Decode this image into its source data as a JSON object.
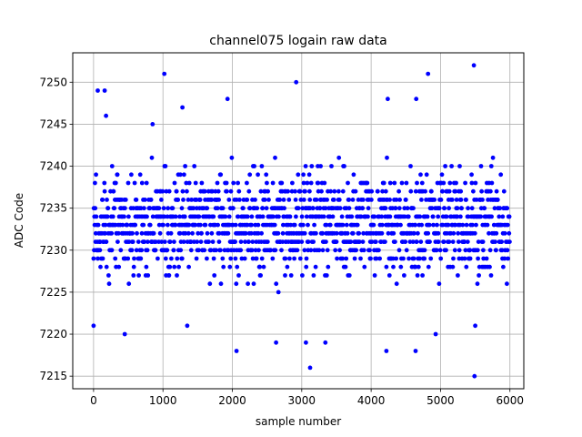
{
  "chart_data": {
    "type": "scatter",
    "title": "channel075 logain raw data",
    "xlabel": "sample number",
    "ylabel": "ADC Code",
    "xlim": [
      -300,
      6200
    ],
    "ylim": [
      7213.5,
      7253.5
    ],
    "xticks": [
      0,
      1000,
      2000,
      3000,
      4000,
      5000,
      6000
    ],
    "yticks": [
      7215,
      7220,
      7225,
      7230,
      7235,
      7240,
      7245,
      7250
    ],
    "grid": true,
    "marker_color": "#0000ff",
    "n_samples": 6000,
    "core_range": [
      7225,
      7241
    ],
    "outliers": [
      {
        "x": 0,
        "y": 7221
      },
      {
        "x": 60,
        "y": 7249
      },
      {
        "x": 160,
        "y": 7249
      },
      {
        "x": 180,
        "y": 7246
      },
      {
        "x": 450,
        "y": 7220
      },
      {
        "x": 850,
        "y": 7245
      },
      {
        "x": 1020,
        "y": 7251
      },
      {
        "x": 1280,
        "y": 7247
      },
      {
        "x": 1350,
        "y": 7221
      },
      {
        "x": 1930,
        "y": 7248
      },
      {
        "x": 2060,
        "y": 7218
      },
      {
        "x": 2630,
        "y": 7219
      },
      {
        "x": 2920,
        "y": 7250
      },
      {
        "x": 3060,
        "y": 7219
      },
      {
        "x": 3120,
        "y": 7216
      },
      {
        "x": 3340,
        "y": 7219
      },
      {
        "x": 4220,
        "y": 7218
      },
      {
        "x": 4240,
        "y": 7248
      },
      {
        "x": 4640,
        "y": 7218
      },
      {
        "x": 4650,
        "y": 7248
      },
      {
        "x": 4820,
        "y": 7251
      },
      {
        "x": 4930,
        "y": 7220
      },
      {
        "x": 5480,
        "y": 7252
      },
      {
        "x": 5490,
        "y": 7215
      },
      {
        "x": 5500,
        "y": 7221
      }
    ]
  }
}
